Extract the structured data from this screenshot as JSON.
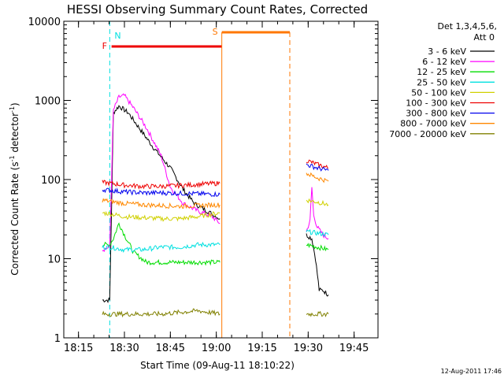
{
  "chart_data": {
    "type": "line",
    "title": "HESSI Observing Summary Count Rates, Corrected",
    "xlabel": "Start Time (09-Aug-11 18:10:22)",
    "ylabel_main": "Corrected Count Rate (s",
    "ylabel_sup1": "-1",
    "ylabel_mid": " detector",
    "ylabel_sup2": "-1",
    "ylabel_end": ")",
    "y_scale": "log",
    "xlim_minutes": [
      18.17,
      19.88
    ],
    "ylim": [
      1,
      10000
    ],
    "x_ticks": [
      "18:15",
      "18:30",
      "18:45",
      "19:00",
      "19:15",
      "19:30",
      "19:45"
    ],
    "y_ticks": [
      "1",
      "10",
      "100",
      "1000",
      "10000"
    ],
    "legend_header": [
      "Det 1,3,4,5,6,",
      "Att 0"
    ],
    "legend_position": "right",
    "timestamp": "12-Aug-2011 17:46",
    "flags": [
      {
        "label": "N",
        "color": "#00e0e0",
        "t_start": 18.42,
        "t_end": 18.42
      },
      {
        "label": "F",
        "color": "#ee0000",
        "t_start": 18.43,
        "t_end": 19.03
      },
      {
        "label": "S",
        "color": "#ff7700",
        "t_start": 19.03,
        "t_end": 19.4
      }
    ],
    "series": [
      {
        "name": "3 - 6 keV",
        "color": "#000000",
        "x": [
          18.38,
          18.42,
          18.44,
          18.47,
          18.52,
          18.58,
          18.66,
          18.75,
          18.82,
          18.88,
          18.95,
          19.02,
          19.49,
          19.52,
          19.54,
          19.56,
          19.58,
          19.61
        ],
        "y": [
          3,
          3,
          700,
          850,
          700,
          450,
          250,
          140,
          75,
          50,
          40,
          32,
          20,
          18,
          10,
          4,
          4,
          3.5
        ]
      },
      {
        "name": "6 - 12 keV",
        "color": "#ff00ff",
        "x": [
          18.38,
          18.42,
          18.44,
          18.47,
          18.5,
          18.55,
          18.62,
          18.7,
          18.75,
          18.82,
          18.9,
          18.97,
          19.02,
          19.49,
          19.51,
          19.52,
          19.53,
          19.55,
          19.58,
          19.61
        ],
        "y": [
          13,
          14,
          750,
          1100,
          1150,
          800,
          450,
          200,
          80,
          50,
          40,
          35,
          28,
          22,
          30,
          80,
          35,
          25,
          20,
          18
        ]
      },
      {
        "name": "12 - 25 keV",
        "color": "#00dd00",
        "x": [
          18.38,
          18.42,
          18.44,
          18.47,
          18.5,
          18.55,
          18.62,
          18.7,
          18.8,
          18.9,
          19.02,
          19.49,
          19.55,
          19.61
        ],
        "y": [
          15,
          15,
          18,
          28,
          20,
          12,
          9,
          9,
          9,
          9,
          9,
          15,
          14,
          13
        ]
      },
      {
        "name": "25 - 50 keV",
        "color": "#00e0e0",
        "x": [
          18.38,
          18.42,
          18.5,
          18.6,
          18.7,
          18.8,
          18.9,
          19.02,
          19.49,
          19.55,
          19.61
        ],
        "y": [
          14,
          14,
          13,
          13,
          14,
          14,
          15,
          15,
          22,
          21,
          20
        ]
      },
      {
        "name": "50 - 100 keV",
        "color": "#d0d000",
        "x": [
          18.38,
          18.42,
          18.5,
          18.6,
          18.7,
          18.8,
          18.9,
          19.02,
          19.49,
          19.55,
          19.61
        ],
        "y": [
          38,
          37,
          34,
          33,
          32,
          32,
          34,
          38,
          55,
          52,
          48
        ]
      },
      {
        "name": "100 - 300 keV",
        "color": "#ee0000",
        "x": [
          18.38,
          18.42,
          18.5,
          18.6,
          18.7,
          18.8,
          18.9,
          19.02,
          19.49,
          19.55,
          19.61
        ],
        "y": [
          92,
          90,
          85,
          82,
          82,
          84,
          87,
          90,
          175,
          155,
          140
        ]
      },
      {
        "name": "300 - 800 keV",
        "color": "#0000ee",
        "x": [
          18.38,
          18.42,
          18.5,
          18.6,
          18.7,
          18.8,
          18.9,
          19.02,
          19.49,
          19.55,
          19.61
        ],
        "y": [
          75,
          73,
          70,
          68,
          68,
          67,
          66,
          65,
          155,
          140,
          130
        ]
      },
      {
        "name": "800 - 7000 keV",
        "color": "#ff8800",
        "x": [
          18.38,
          18.42,
          18.5,
          18.6,
          18.7,
          18.8,
          18.9,
          19.02,
          19.49,
          19.55,
          19.61
        ],
        "y": [
          55,
          53,
          50,
          48,
          47,
          46,
          47,
          48,
          120,
          105,
          95
        ]
      },
      {
        "name": "7000 - 20000 keV",
        "color": "#808000",
        "x": [
          18.38,
          18.5,
          18.7,
          18.9,
          19.02,
          19.49,
          19.55,
          19.61
        ],
        "y": [
          2,
          2,
          2,
          2.2,
          2,
          2,
          2,
          2
        ]
      }
    ]
  }
}
